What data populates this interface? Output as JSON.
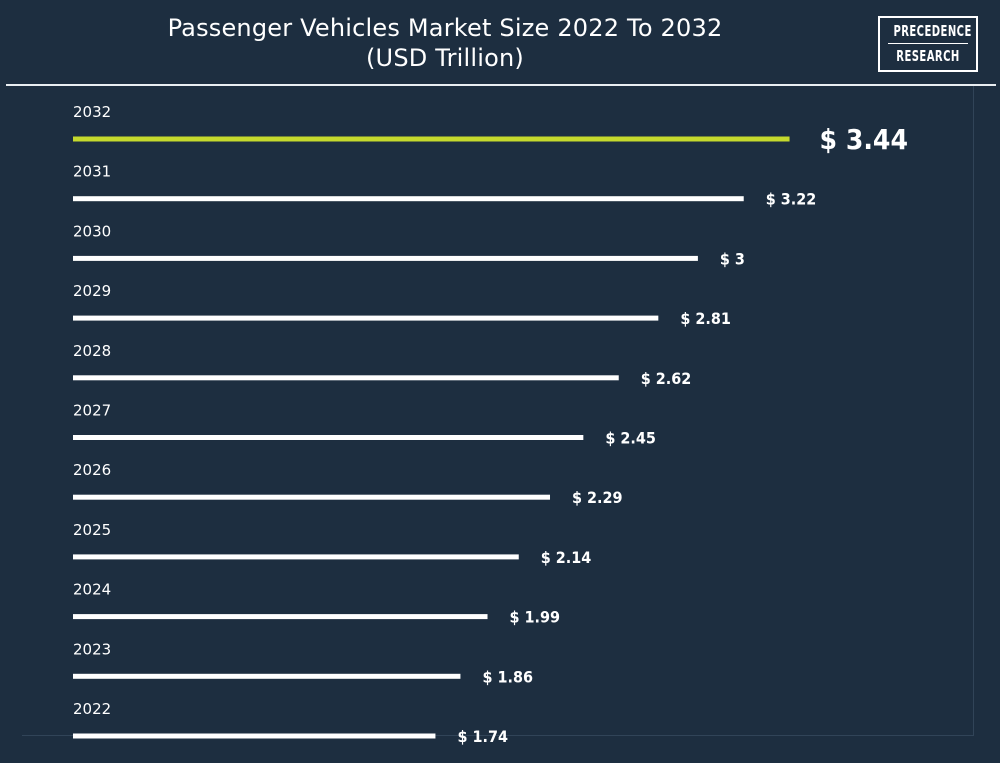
{
  "title_lines": [
    "Passenger Vehicles Market Size 2022 To 2032",
    "(USD Trillion)"
  ],
  "logo": {
    "line1": "PRECEDENCE",
    "line2": "RESEARCH"
  },
  "colors": {
    "background": "#1d2e40",
    "bar": "#ffffff",
    "highlight_bar": "#c5d92d",
    "text": "#ffffff"
  },
  "chart_data": {
    "type": "bar",
    "orientation": "horizontal",
    "title": "Passenger Vehicles Market Size 2022 To 2032 (USD Trillion)",
    "categories": [
      "2032",
      "2031",
      "2030",
      "2029",
      "2028",
      "2027",
      "2026",
      "2025",
      "2024",
      "2023",
      "2022"
    ],
    "values": [
      3.44,
      3.22,
      3,
      2.81,
      2.62,
      2.45,
      2.29,
      2.14,
      1.99,
      1.86,
      1.74
    ],
    "value_labels": [
      "$ 3.44",
      "$ 3.22",
      "$ 3",
      "$ 2.81",
      "$ 2.62",
      "$ 2.45",
      "$ 2.29",
      "$ 2.14",
      "$ 1.99",
      "$ 1.86",
      "$ 1.74"
    ],
    "highlight_category": "2032",
    "xlabel": "",
    "ylabel": "",
    "grid": false,
    "legend": "none"
  }
}
